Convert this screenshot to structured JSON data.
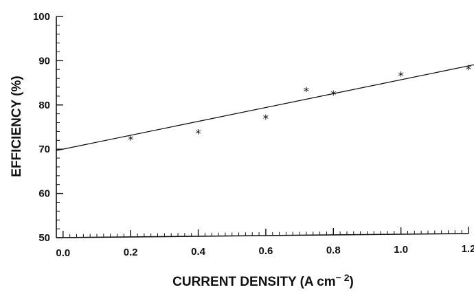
{
  "chart_data": {
    "type": "scatter",
    "title": "",
    "xlabel": "CURRENT DENSITY (A cm",
    "xlabel_exponent": "− 2",
    "xlabel_close": ")",
    "ylabel": "EFFICIENCY (%)",
    "xlim": [
      -0.02,
      1.2
    ],
    "ylim": [
      50,
      100
    ],
    "x_ticks": [
      "0.0",
      "0.2",
      "0.4",
      "0.6",
      "0.8",
      "1.0",
      "1.2"
    ],
    "x_tick_values": [
      0.0,
      0.2,
      0.4,
      0.6,
      0.8,
      1.0,
      1.2
    ],
    "y_ticks": [
      "50",
      "60",
      "70",
      "80",
      "90",
      "100"
    ],
    "y_tick_values": [
      50,
      60,
      70,
      80,
      90,
      100
    ],
    "grid": false,
    "marker_symbol": "*",
    "series": [
      {
        "type": "scatter",
        "x": [
          0.2,
          0.4,
          0.6,
          0.72,
          0.8,
          1.0,
          1.2
        ],
        "y": [
          72.3,
          73.5,
          76.7,
          82.8,
          82.0,
          86.1,
          87.4
        ]
      },
      {
        "type": "line",
        "x": [
          -0.02,
          1.22
        ],
        "y": [
          69.7,
          88.2
        ]
      }
    ]
  }
}
